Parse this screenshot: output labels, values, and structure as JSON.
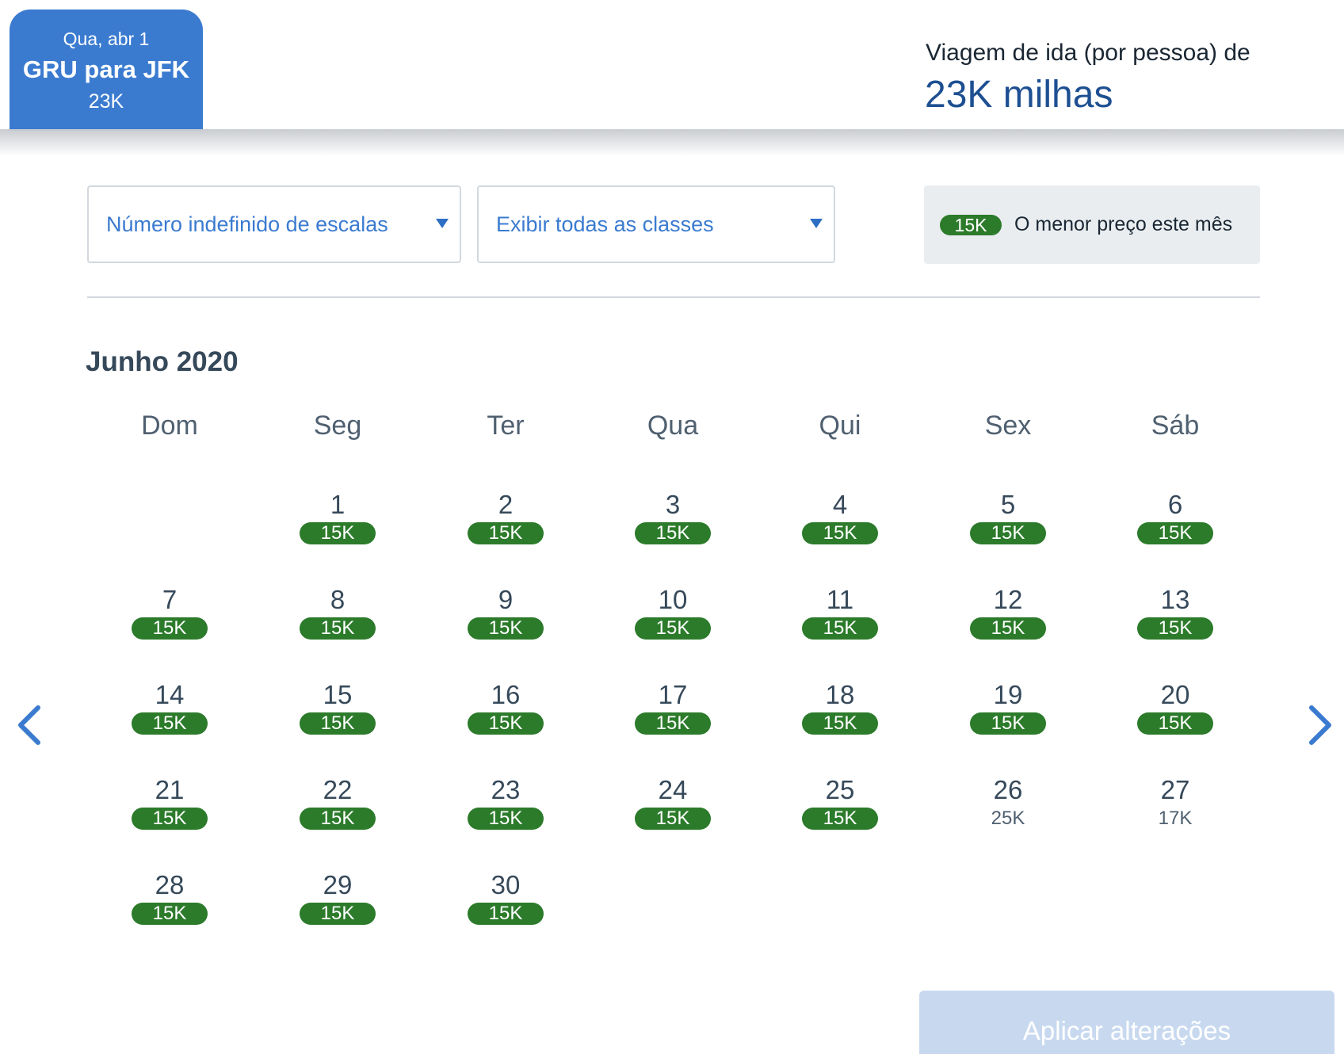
{
  "header": {
    "flight_tab": {
      "date": "Qua, abr 1",
      "route": "GRU para JFK",
      "price": "23K"
    },
    "fare_label": "Viagem de ida (por pessoa) de",
    "fare_value": "23K milhas"
  },
  "filters": {
    "stops": {
      "value": "Número indefinido de escalas"
    },
    "cabin": {
      "value": "Exibir todas as classes"
    }
  },
  "legend": {
    "pill": "15K",
    "text": "O menor preço este mês",
    "lowest_color": "#2c7b2b"
  },
  "calendar": {
    "month_title": "Junho 2020",
    "weekdays": [
      "Dom",
      "Seg",
      "Ter",
      "Qua",
      "Qui",
      "Sex",
      "Sáb"
    ],
    "weeks": [
      [
        null,
        {
          "day": "1",
          "price": "15K",
          "lowest": true
        },
        {
          "day": "2",
          "price": "15K",
          "lowest": true
        },
        {
          "day": "3",
          "price": "15K",
          "lowest": true
        },
        {
          "day": "4",
          "price": "15K",
          "lowest": true
        },
        {
          "day": "5",
          "price": "15K",
          "lowest": true
        },
        {
          "day": "6",
          "price": "15K",
          "lowest": true
        }
      ],
      [
        {
          "day": "7",
          "price": "15K",
          "lowest": true
        },
        {
          "day": "8",
          "price": "15K",
          "lowest": true
        },
        {
          "day": "9",
          "price": "15K",
          "lowest": true
        },
        {
          "day": "10",
          "price": "15K",
          "lowest": true
        },
        {
          "day": "11",
          "price": "15K",
          "lowest": true
        },
        {
          "day": "12",
          "price": "15K",
          "lowest": true
        },
        {
          "day": "13",
          "price": "15K",
          "lowest": true
        }
      ],
      [
        {
          "day": "14",
          "price": "15K",
          "lowest": true
        },
        {
          "day": "15",
          "price": "15K",
          "lowest": true
        },
        {
          "day": "16",
          "price": "15K",
          "lowest": true
        },
        {
          "day": "17",
          "price": "15K",
          "lowest": true
        },
        {
          "day": "18",
          "price": "15K",
          "lowest": true
        },
        {
          "day": "19",
          "price": "15K",
          "lowest": true
        },
        {
          "day": "20",
          "price": "15K",
          "lowest": true
        }
      ],
      [
        {
          "day": "21",
          "price": "15K",
          "lowest": true
        },
        {
          "day": "22",
          "price": "15K",
          "lowest": true
        },
        {
          "day": "23",
          "price": "15K",
          "lowest": true
        },
        {
          "day": "24",
          "price": "15K",
          "lowest": true
        },
        {
          "day": "25",
          "price": "15K",
          "lowest": true
        },
        {
          "day": "26",
          "price": "25K",
          "lowest": false
        },
        {
          "day": "27",
          "price": "17K",
          "lowest": false
        }
      ],
      [
        {
          "day": "28",
          "price": "15K",
          "lowest": true
        },
        {
          "day": "29",
          "price": "15K",
          "lowest": true
        },
        {
          "day": "30",
          "price": "15K",
          "lowest": true
        },
        null,
        null,
        null,
        null
      ]
    ],
    "prev_icon": "chevron-left-icon",
    "next_icon": "chevron-right-icon"
  },
  "apply_button": {
    "label": "Aplicar alterações"
  },
  "colors": {
    "accent": "#3a7bd0",
    "heading": "#1d4f91",
    "lowest": "#2c7b2b"
  }
}
